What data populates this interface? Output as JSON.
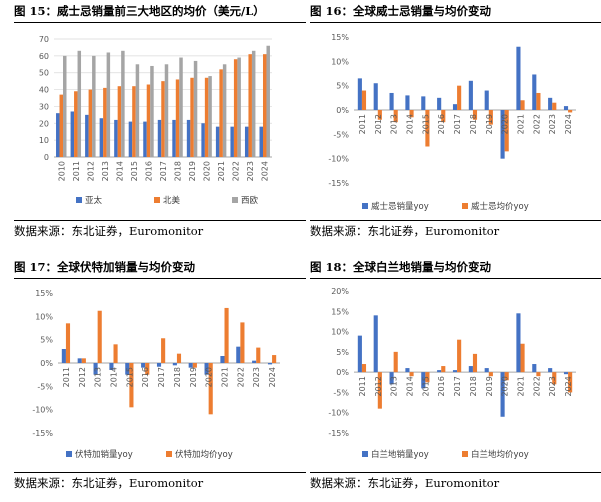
{
  "colors": {
    "blue": "#4472C4",
    "orange": "#ED7D31",
    "gray": "#A5A5A5",
    "grid": "#D9D9D9",
    "axis": "#A6A6A6"
  },
  "panels": [
    {
      "title": "图 15：威士忌销量前三大地区的均价（美元/L）",
      "source": "数据来源：东北证券，Euromonitor"
    },
    {
      "title": "图 16：全球威士忌销量与均价变动",
      "source": "数据来源：东北证券，Euromonitor"
    },
    {
      "title": "图 17：全球伏特加销量与均价变动",
      "source": "数据来源：东北证券，Euromonitor"
    },
    {
      "title": "图 18：全球白兰地销量与均价变动",
      "source": "数据来源：东北证券，Euromonitor"
    }
  ],
  "chart_data": [
    {
      "type": "bar",
      "categories": [
        "2010",
        "2011",
        "2012",
        "2013",
        "2014",
        "2015",
        "2016",
        "2017",
        "2018",
        "2019",
        "2020",
        "2021",
        "2022",
        "2023",
        "2024"
      ],
      "yticks": [
        0,
        10,
        20,
        30,
        40,
        50,
        60,
        70
      ],
      "ylim": [
        0,
        70
      ],
      "ytick_format": "",
      "series": [
        {
          "name": "亚太",
          "color": "#4472C4",
          "values": [
            26,
            27,
            25,
            23,
            22,
            21,
            21,
            22,
            22,
            22,
            20,
            18,
            18,
            18,
            18
          ]
        },
        {
          "name": "北美",
          "color": "#ED7D31",
          "values": [
            37,
            39,
            40,
            41,
            42,
            42,
            43,
            45,
            46,
            47,
            47,
            52,
            58,
            61,
            61
          ]
        },
        {
          "name": "西欧",
          "color": "#A5A5A5",
          "values": [
            60,
            63,
            60,
            62,
            63,
            55,
            54,
            55,
            59,
            57,
            48,
            55,
            59,
            63,
            66
          ]
        }
      ]
    },
    {
      "type": "bar",
      "categories": [
        "2011",
        "2012",
        "2013",
        "2014",
        "2015",
        "2016",
        "2017",
        "2018",
        "2019",
        "2020",
        "2021",
        "2022",
        "2023",
        "2024"
      ],
      "yticks": [
        -15,
        -10,
        -5,
        0,
        5,
        10,
        15
      ],
      "ylim": [
        -15,
        15
      ],
      "ytick_format": "%",
      "series": [
        {
          "name": "威士忌销量yoy",
          "color": "#4472C4",
          "values": [
            6.5,
            5.5,
            3.5,
            3.0,
            2.8,
            2.5,
            1.2,
            6.0,
            4.0,
            -10.0,
            13.0,
            7.3,
            2.5,
            0.8
          ]
        },
        {
          "name": "威士忌均价yoy",
          "color": "#ED7D31",
          "values": [
            4.0,
            -2.0,
            -2.5,
            -1.5,
            -7.5,
            -2.5,
            5.0,
            -2.0,
            -3.0,
            -8.5,
            2.0,
            3.5,
            1.5,
            -0.5
          ]
        }
      ]
    },
    {
      "type": "bar",
      "categories": [
        "2011",
        "2012",
        "2013",
        "2014",
        "2015",
        "2016",
        "2017",
        "2018",
        "2019",
        "2020",
        "2021",
        "2022",
        "2023",
        "2024"
      ],
      "yticks": [
        -15,
        -10,
        -5,
        0,
        5,
        10,
        15
      ],
      "ylim": [
        -15,
        15
      ],
      "ytick_format": "%",
      "series": [
        {
          "name": "伏特加销量yoy",
          "color": "#4472C4",
          "values": [
            3.0,
            1.0,
            -2.5,
            -1.5,
            -2.5,
            -1.0,
            -0.8,
            -0.5,
            -1.0,
            -2.5,
            1.5,
            3.5,
            0.5,
            -0.3
          ]
        },
        {
          "name": "伏特加均价yoy",
          "color": "#ED7D31",
          "values": [
            8.5,
            1.0,
            11.2,
            4.0,
            -9.5,
            -2.5,
            5.3,
            2.0,
            -1.0,
            -11.0,
            11.8,
            8.7,
            3.3,
            1.7
          ]
        }
      ]
    },
    {
      "type": "bar",
      "categories": [
        "2011",
        "2012",
        "2013",
        "2014",
        "2015",
        "2016",
        "2017",
        "2018",
        "2019",
        "2020",
        "2021",
        "2022",
        "2023",
        "2024"
      ],
      "yticks": [
        -15,
        -10,
        -5,
        0,
        5,
        10,
        15,
        20
      ],
      "ylim": [
        -15,
        20
      ],
      "ytick_format": "%",
      "series": [
        {
          "name": "白兰地销量yoy",
          "color": "#4472C4",
          "values": [
            9.0,
            14.0,
            -3.0,
            1.0,
            -4.0,
            0.5,
            0.5,
            1.5,
            1.0,
            -11.0,
            14.5,
            2.0,
            1.0,
            -0.5
          ]
        },
        {
          "name": "白兰地均价yoy",
          "color": "#ED7D31",
          "values": [
            2.0,
            -9.0,
            5.0,
            -1.0,
            -2.5,
            1.5,
            8.0,
            4.5,
            -1.0,
            -2.0,
            7.0,
            -1.0,
            -3.0,
            -5.0
          ]
        }
      ]
    }
  ]
}
